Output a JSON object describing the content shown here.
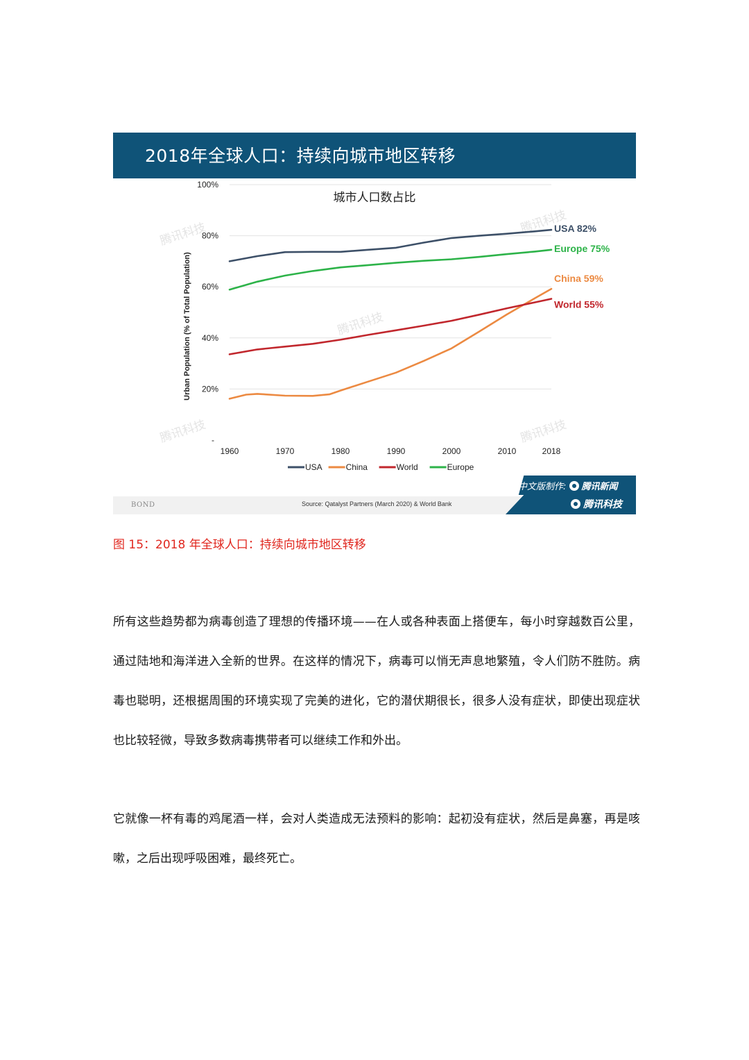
{
  "figure": {
    "banner_title": "2018年全球人口：持续向城市地区转移",
    "caption": "图 15：2018 年全球人口：持续向城市地区转移",
    "footer_left": "BOND",
    "source": "Source: Qatalyst Partners (March 2020) & World Bank",
    "credit_prefix": "中文版制作:",
    "credit_name_1": "腾讯新闻",
    "credit_name_2": "腾讯科技",
    "watermark": "腾讯科技"
  },
  "chart_data": {
    "type": "line",
    "title": "城市人口数占比",
    "ylabel": "Urban Population (% of Total Population)",
    "xlabel": "",
    "xlim": [
      1960,
      2018
    ],
    "ylim": [
      0,
      100
    ],
    "x_ticks": [
      1960,
      1970,
      1980,
      1990,
      2000,
      2010,
      2018
    ],
    "y_ticks": [
      20,
      40,
      60,
      80,
      100
    ],
    "y_tick_labels": [
      "20%",
      "40%",
      "60%",
      "80%",
      "100%"
    ],
    "y_zero_label": "-",
    "grid": true,
    "legend": "bottom",
    "series": [
      {
        "name": "USA",
        "color": "#3d5068",
        "end_label": "USA 82%",
        "x": [
          1960,
          1965,
          1970,
          1975,
          1980,
          1985,
          1990,
          1995,
          2000,
          2005,
          2010,
          2015,
          2018
        ],
        "values": [
          70,
          72,
          73.6,
          73.7,
          73.7,
          74.5,
          75.3,
          77.3,
          79.1,
          80,
          80.8,
          81.7,
          82.3
        ]
      },
      {
        "name": "China",
        "color": "#ec8a42",
        "end_label": "China 59%",
        "x": [
          1960,
          1963,
          1965,
          1970,
          1975,
          1978,
          1980,
          1985,
          1990,
          1995,
          2000,
          2005,
          2010,
          2015,
          2018
        ],
        "values": [
          16.2,
          17.8,
          18.1,
          17.4,
          17.3,
          17.9,
          19.4,
          22.9,
          26.4,
          31,
          35.9,
          42.5,
          49.2,
          55.5,
          59.2
        ]
      },
      {
        "name": "World",
        "color": "#c1272d",
        "end_label": "World 55%",
        "x": [
          1960,
          1965,
          1970,
          1975,
          1980,
          1985,
          1990,
          1995,
          2000,
          2005,
          2010,
          2015,
          2018
        ],
        "values": [
          33.6,
          35.5,
          36.6,
          37.7,
          39.3,
          41.2,
          43,
          44.8,
          46.7,
          49.1,
          51.6,
          53.9,
          55.3
        ]
      },
      {
        "name": "Europe",
        "color": "#2db349",
        "end_label": "Europe 75%",
        "x": [
          1960,
          1965,
          1970,
          1975,
          1980,
          1985,
          1990,
          1995,
          2000,
          2005,
          2010,
          2015,
          2018
        ],
        "values": [
          58.9,
          62,
          64.4,
          66.2,
          67.6,
          68.5,
          69.4,
          70.2,
          70.8,
          71.7,
          72.8,
          73.8,
          74.5
        ]
      }
    ]
  },
  "body": {
    "paragraph_1": "所有这些趋势都为病毒创造了理想的传播环境——在人或各种表面上搭便车，每小时穿越数百公里，通过陆地和海洋进入全新的世界。在这样的情况下，病毒可以悄无声息地繁殖，令人们防不胜防。病毒也聪明，还根据周围的环境实现了完美的进化，它的潜伏期很长，很多人没有症状，即使出现症状也比较轻微，导致多数病毒携带者可以继续工作和外出。",
    "paragraph_2": "它就像一杯有毒的鸡尾酒一样，会对人类造成无法预料的影响：起初没有症状，然后是鼻塞，再是咳嗽，之后出现呼吸困难，最终死亡。"
  }
}
